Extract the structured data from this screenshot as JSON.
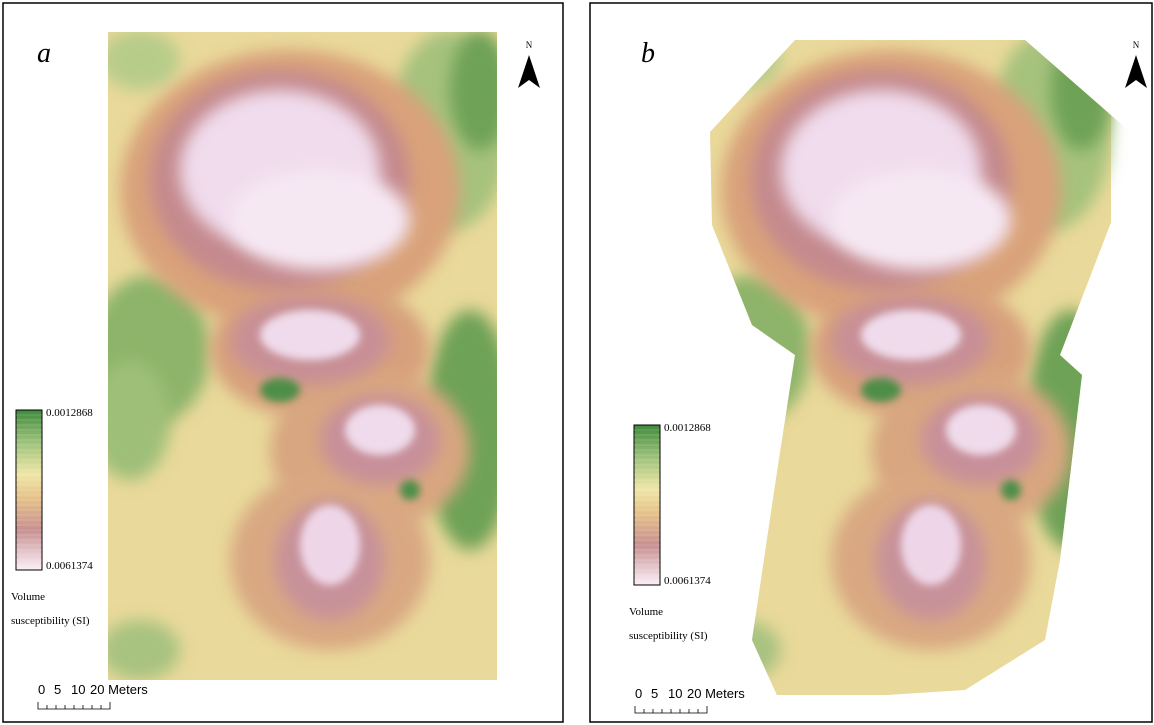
{
  "panels": [
    {
      "label": "a",
      "north": "N",
      "legend": {
        "max": "0.0012868",
        "min": "0.0061374",
        "title_line1": "Volume",
        "title_line2": "susceptibility (SI)"
      },
      "scale": [
        "0",
        "5",
        "10",
        "20 Meters"
      ]
    },
    {
      "label": "b",
      "north": "N",
      "legend": {
        "max": "0.0012868",
        "min": "0.0061374",
        "title_line1": "Volume",
        "title_line2": "susceptibility (SI)"
      },
      "scale": [
        "0",
        "5",
        "10",
        "20 Meters"
      ]
    }
  ]
}
